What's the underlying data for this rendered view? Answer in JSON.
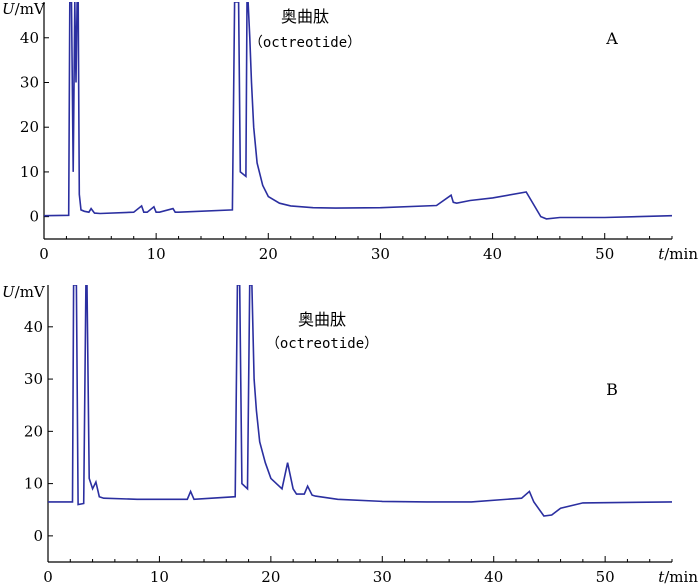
{
  "chart_data": [
    {
      "type": "line",
      "panel": "A",
      "ylabel": "U/mV",
      "xlabel": "t/min",
      "xlim": [
        0,
        56
      ],
      "ylim": [
        -5,
        48
      ],
      "xticks": [
        "0",
        "10",
        "20",
        "30",
        "40",
        "50"
      ],
      "yticks": [
        "0",
        "10",
        "20",
        "30",
        "40"
      ],
      "annotation": {
        "name": "奥曲肽",
        "sub": "（octreotide）"
      },
      "series": [
        {
          "color": "#2b2fa0",
          "x": [
            0,
            2.2,
            2.3,
            2.45,
            2.6,
            2.75,
            2.85,
            2.95,
            3.05,
            3.15,
            3.3,
            3.6,
            4.0,
            4.2,
            4.5,
            5,
            8,
            8.7,
            8.9,
            9.2,
            9.8,
            10.0,
            10.3,
            11.5,
            11.7,
            12,
            16.8,
            17.0,
            17.2,
            17.35,
            17.5,
            18.0,
            18.1,
            18.2,
            18.35,
            18.5,
            18.7,
            19.0,
            19.5,
            20,
            21,
            22,
            24,
            26,
            30,
            35,
            36.3,
            36.5,
            36.8,
            38,
            40,
            43,
            44.3,
            44.8,
            46,
            50,
            56
          ],
          "y": [
            0.2,
            0.3,
            48,
            48,
            10,
            48,
            30,
            48,
            48,
            5,
            1.5,
            1.2,
            1.0,
            1.8,
            0.8,
            0.7,
            1.0,
            2.4,
            1.0,
            1.0,
            2.2,
            1.0,
            1.0,
            1.8,
            1.0,
            1.0,
            1.5,
            48,
            48,
            48,
            10,
            9,
            48,
            48,
            40,
            30,
            20,
            12,
            7,
            4.5,
            3,
            2.4,
            2.0,
            1.9,
            2.0,
            2.5,
            4.8,
            3.2,
            3.0,
            3.6,
            4.2,
            5.5,
            0,
            -0.5,
            -0.2,
            -0.2,
            0.2
          ]
        }
      ]
    },
    {
      "type": "line",
      "panel": "B",
      "ylabel": "U/mV",
      "xlabel": "t/min",
      "xlim": [
        0,
        56
      ],
      "ylim": [
        -5,
        48
      ],
      "xticks": [
        "0",
        "10",
        "20",
        "30",
        "40",
        "50"
      ],
      "yticks": [
        "0",
        "10",
        "20",
        "30",
        "40"
      ],
      "annotation": {
        "name": "奥曲肽",
        "sub": "（octreotide）"
      },
      "series": [
        {
          "color": "#2b2fa0",
          "x": [
            0,
            2.2,
            2.3,
            2.55,
            2.7,
            3.2,
            3.4,
            3.5,
            3.7,
            4.0,
            4.3,
            4.6,
            5,
            8,
            12.5,
            12.8,
            13.1,
            16.8,
            17.0,
            17.2,
            17.4,
            17.9,
            18.1,
            18.3,
            18.5,
            18.7,
            19.0,
            19.5,
            20,
            21,
            21.5,
            21.7,
            22.0,
            22.3,
            23.0,
            23.3,
            23.7,
            24,
            26,
            30,
            34,
            38,
            42.5,
            43.2,
            43.6,
            44.5,
            45.2,
            46,
            48,
            56
          ],
          "y": [
            6.5,
            6.5,
            48,
            48,
            6.0,
            6.2,
            48,
            48,
            11,
            9,
            10.3,
            7.5,
            7.2,
            7.0,
            7.0,
            8.5,
            7.0,
            7.5,
            48,
            48,
            10,
            9,
            48,
            48,
            30,
            24,
            18,
            14,
            11,
            9,
            14,
            12,
            9,
            8,
            8,
            9.5,
            7.8,
            7.6,
            7.0,
            6.6,
            6.5,
            6.5,
            7.2,
            8.5,
            6.5,
            3.8,
            4.0,
            5.3,
            6.3,
            6.5
          ]
        }
      ]
    }
  ]
}
